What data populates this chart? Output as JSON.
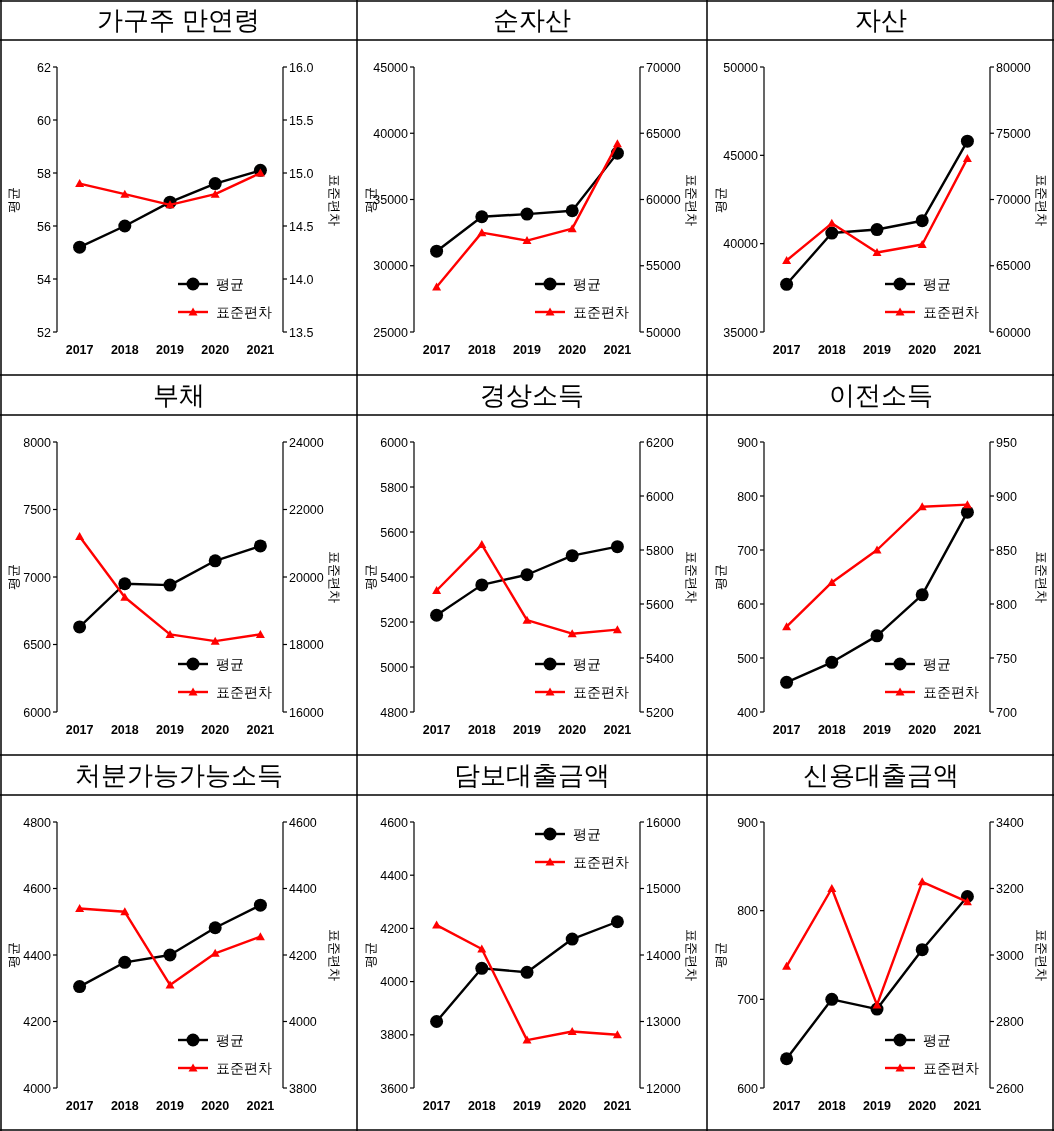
{
  "chart_data": [
    {
      "type": "line",
      "title": "가구주 만연령",
      "categories": [
        "2017",
        "2018",
        "2019",
        "2020",
        "2021"
      ],
      "ylabel": "평균",
      "y2label": "표준편차",
      "ylim": [
        52,
        62
      ],
      "yticks": [
        52,
        54,
        56,
        58,
        60,
        62
      ],
      "y2lim": [
        13.5,
        16
      ],
      "y2ticks": [
        {
          "value": 13.5,
          "label": "13.5"
        },
        {
          "value": 14,
          "label": "14.0"
        },
        {
          "value": 14.5,
          "label": "14.5"
        },
        {
          "value": 15,
          "label": "15.0"
        },
        {
          "value": 15.5,
          "label": "15.5"
        },
        {
          "value": 16,
          "label": "16.0"
        }
      ],
      "legend": "bottom right",
      "series": [
        {
          "name": "평균",
          "color": "#000000",
          "marker": "circle",
          "values": [
            55.2,
            56.0,
            56.9,
            57.6,
            58.1
          ]
        },
        {
          "name": "표준편차",
          "color": "#ff0000",
          "marker": "triangle",
          "axis": "y2",
          "values": [
            14.9,
            14.8,
            14.7,
            14.8,
            15.0
          ]
        }
      ]
    },
    {
      "type": "line",
      "title": "순자산",
      "categories": [
        "2017",
        "2018",
        "2019",
        "2020",
        "2021"
      ],
      "ylabel": "평균",
      "y2label": "표준편차",
      "ylim": [
        25000,
        45000
      ],
      "yticks": [
        25000,
        30000,
        35000,
        40000,
        45000
      ],
      "y2lim": [
        50000,
        70000
      ],
      "y2ticks": [
        50000,
        55000,
        60000,
        65000,
        70000
      ],
      "legend": "bottom right",
      "series": [
        {
          "name": "평균",
          "color": "#000000",
          "marker": "circle",
          "values": [
            31100,
            33700,
            33900,
            34150,
            38500
          ]
        },
        {
          "name": "표준편차",
          "color": "#ff0000",
          "marker": "triangle",
          "axis": "y2",
          "values": [
            53400,
            57500,
            56900,
            57800,
            64200
          ]
        }
      ]
    },
    {
      "type": "line",
      "title": "자산",
      "categories": [
        "2017",
        "2018",
        "2019",
        "2020",
        "2021"
      ],
      "ylabel": "평균",
      "y2label": "표준편차",
      "ylim": [
        35000,
        50000
      ],
      "yticks": [
        35000,
        40000,
        45000,
        50000
      ],
      "y2lim": [
        60000,
        80000
      ],
      "y2ticks": [
        60000,
        65000,
        70000,
        75000,
        80000
      ],
      "legend": "bottom right",
      "series": [
        {
          "name": "평균",
          "color": "#000000",
          "marker": "circle",
          "values": [
            37700,
            40600,
            40800,
            41300,
            45800
          ]
        },
        {
          "name": "표준편차",
          "color": "#ff0000",
          "marker": "triangle",
          "axis": "y2",
          "values": [
            65400,
            68200,
            66000,
            66600,
            73100
          ]
        }
      ]
    },
    {
      "type": "line",
      "title": "부채",
      "categories": [
        "2017",
        "2018",
        "2019",
        "2020",
        "2021"
      ],
      "ylabel": "평균",
      "y2label": "표준편차",
      "ylim": [
        6000,
        8000
      ],
      "yticks": [
        6000,
        6500,
        7000,
        7500,
        8000
      ],
      "y2lim": [
        16000,
        24000
      ],
      "y2ticks": [
        16000,
        18000,
        20000,
        22000,
        24000
      ],
      "legend": "bottom right",
      "series": [
        {
          "name": "평균",
          "color": "#000000",
          "marker": "circle",
          "values": [
            6630,
            6950,
            6940,
            7120,
            7230
          ]
        },
        {
          "name": "표준편차",
          "color": "#ff0000",
          "marker": "triangle",
          "axis": "y2",
          "values": [
            21200,
            19400,
            18300,
            18100,
            18300
          ]
        }
      ]
    },
    {
      "type": "line",
      "title": "경상소득",
      "categories": [
        "2017",
        "2018",
        "2019",
        "2020",
        "2021"
      ],
      "ylabel": "평균",
      "y2label": "표준편차",
      "ylim": [
        4800,
        6000
      ],
      "yticks": [
        4800,
        5000,
        5200,
        5400,
        5600,
        5800,
        6000
      ],
      "y2lim": [
        5200,
        6200
      ],
      "y2ticks": [
        5200,
        5400,
        5600,
        5800,
        6000,
        6200
      ],
      "legend": "bottom right",
      "series": [
        {
          "name": "평균",
          "color": "#000000",
          "marker": "circle",
          "values": [
            5230,
            5365,
            5410,
            5495,
            5535
          ]
        },
        {
          "name": "표준편차",
          "color": "#ff0000",
          "marker": "triangle",
          "axis": "y2",
          "values": [
            5650,
            5820,
            5540,
            5490,
            5505
          ]
        }
      ]
    },
    {
      "type": "line",
      "title": "이전소득",
      "categories": [
        "2017",
        "2018",
        "2019",
        "2020",
        "2021"
      ],
      "ylabel": "평균",
      "y2label": "표준편차",
      "ylim": [
        400,
        900
      ],
      "yticks": [
        400,
        500,
        600,
        700,
        800,
        900
      ],
      "y2lim": [
        700,
        950
      ],
      "y2ticks": [
        700,
        750,
        800,
        850,
        900,
        950
      ],
      "legend": "bottom right",
      "series": [
        {
          "name": "평균",
          "color": "#000000",
          "marker": "circle",
          "values": [
            455,
            492,
            541,
            617,
            770
          ]
        },
        {
          "name": "표준편차",
          "color": "#ff0000",
          "marker": "triangle",
          "axis": "y2",
          "values": [
            779,
            820,
            850,
            890,
            892
          ]
        }
      ]
    },
    {
      "type": "line",
      "title": "처분가능가능소득",
      "categories": [
        "2017",
        "2018",
        "2019",
        "2020",
        "2021"
      ],
      "ylabel": "평균",
      "y2label": "표준편차",
      "ylim": [
        4000,
        4800
      ],
      "yticks": [
        4000,
        4200,
        4400,
        4600,
        4800
      ],
      "y2lim": [
        3800,
        4600
      ],
      "y2ticks": [
        3800,
        4000,
        4200,
        4400,
        4600
      ],
      "legend": "bottom right",
      "series": [
        {
          "name": "평균",
          "color": "#000000",
          "marker": "circle",
          "values": [
            4305,
            4378,
            4400,
            4482,
            4550
          ]
        },
        {
          "name": "표준편차",
          "color": "#ff0000",
          "marker": "triangle",
          "axis": "y2",
          "values": [
            4340,
            4330,
            4110,
            4205,
            4255
          ]
        }
      ]
    },
    {
      "type": "line",
      "title": "담보대출금액",
      "categories": [
        "2017",
        "2018",
        "2019",
        "2020",
        "2021"
      ],
      "ylabel": "평균",
      "y2label": "표준편차",
      "ylim": [
        3600,
        4600
      ],
      "yticks": [
        3600,
        3800,
        4000,
        4200,
        4400,
        4600
      ],
      "y2lim": [
        12000,
        16000
      ],
      "y2ticks": [
        12000,
        13000,
        14000,
        15000,
        16000
      ],
      "legend": "top right",
      "series": [
        {
          "name": "평균",
          "color": "#000000",
          "marker": "circle",
          "values": [
            3850,
            4050,
            4035,
            4160,
            4225
          ]
        },
        {
          "name": "표준편차",
          "color": "#ff0000",
          "marker": "triangle",
          "axis": "y2",
          "values": [
            14450,
            14090,
            12720,
            12850,
            12800
          ]
        }
      ]
    },
    {
      "type": "line",
      "title": "신용대출금액",
      "categories": [
        "2017",
        "2018",
        "2019",
        "2020",
        "2021"
      ],
      "ylabel": "평균",
      "y2label": "표준편차",
      "ylim": [
        600,
        900
      ],
      "yticks": [
        600,
        700,
        800,
        900
      ],
      "y2lim": [
        2600,
        3400
      ],
      "y2ticks": [
        2600,
        2800,
        3000,
        3200,
        3400
      ],
      "legend": "bottom right",
      "series": [
        {
          "name": "평균",
          "color": "#000000",
          "marker": "circle",
          "values": [
            633,
            700,
            689,
            756,
            816
          ]
        },
        {
          "name": "표준편차",
          "color": "#ff0000",
          "marker": "triangle",
          "axis": "y2",
          "values": [
            2966,
            3200,
            2850,
            3220,
            3160
          ]
        }
      ]
    }
  ]
}
